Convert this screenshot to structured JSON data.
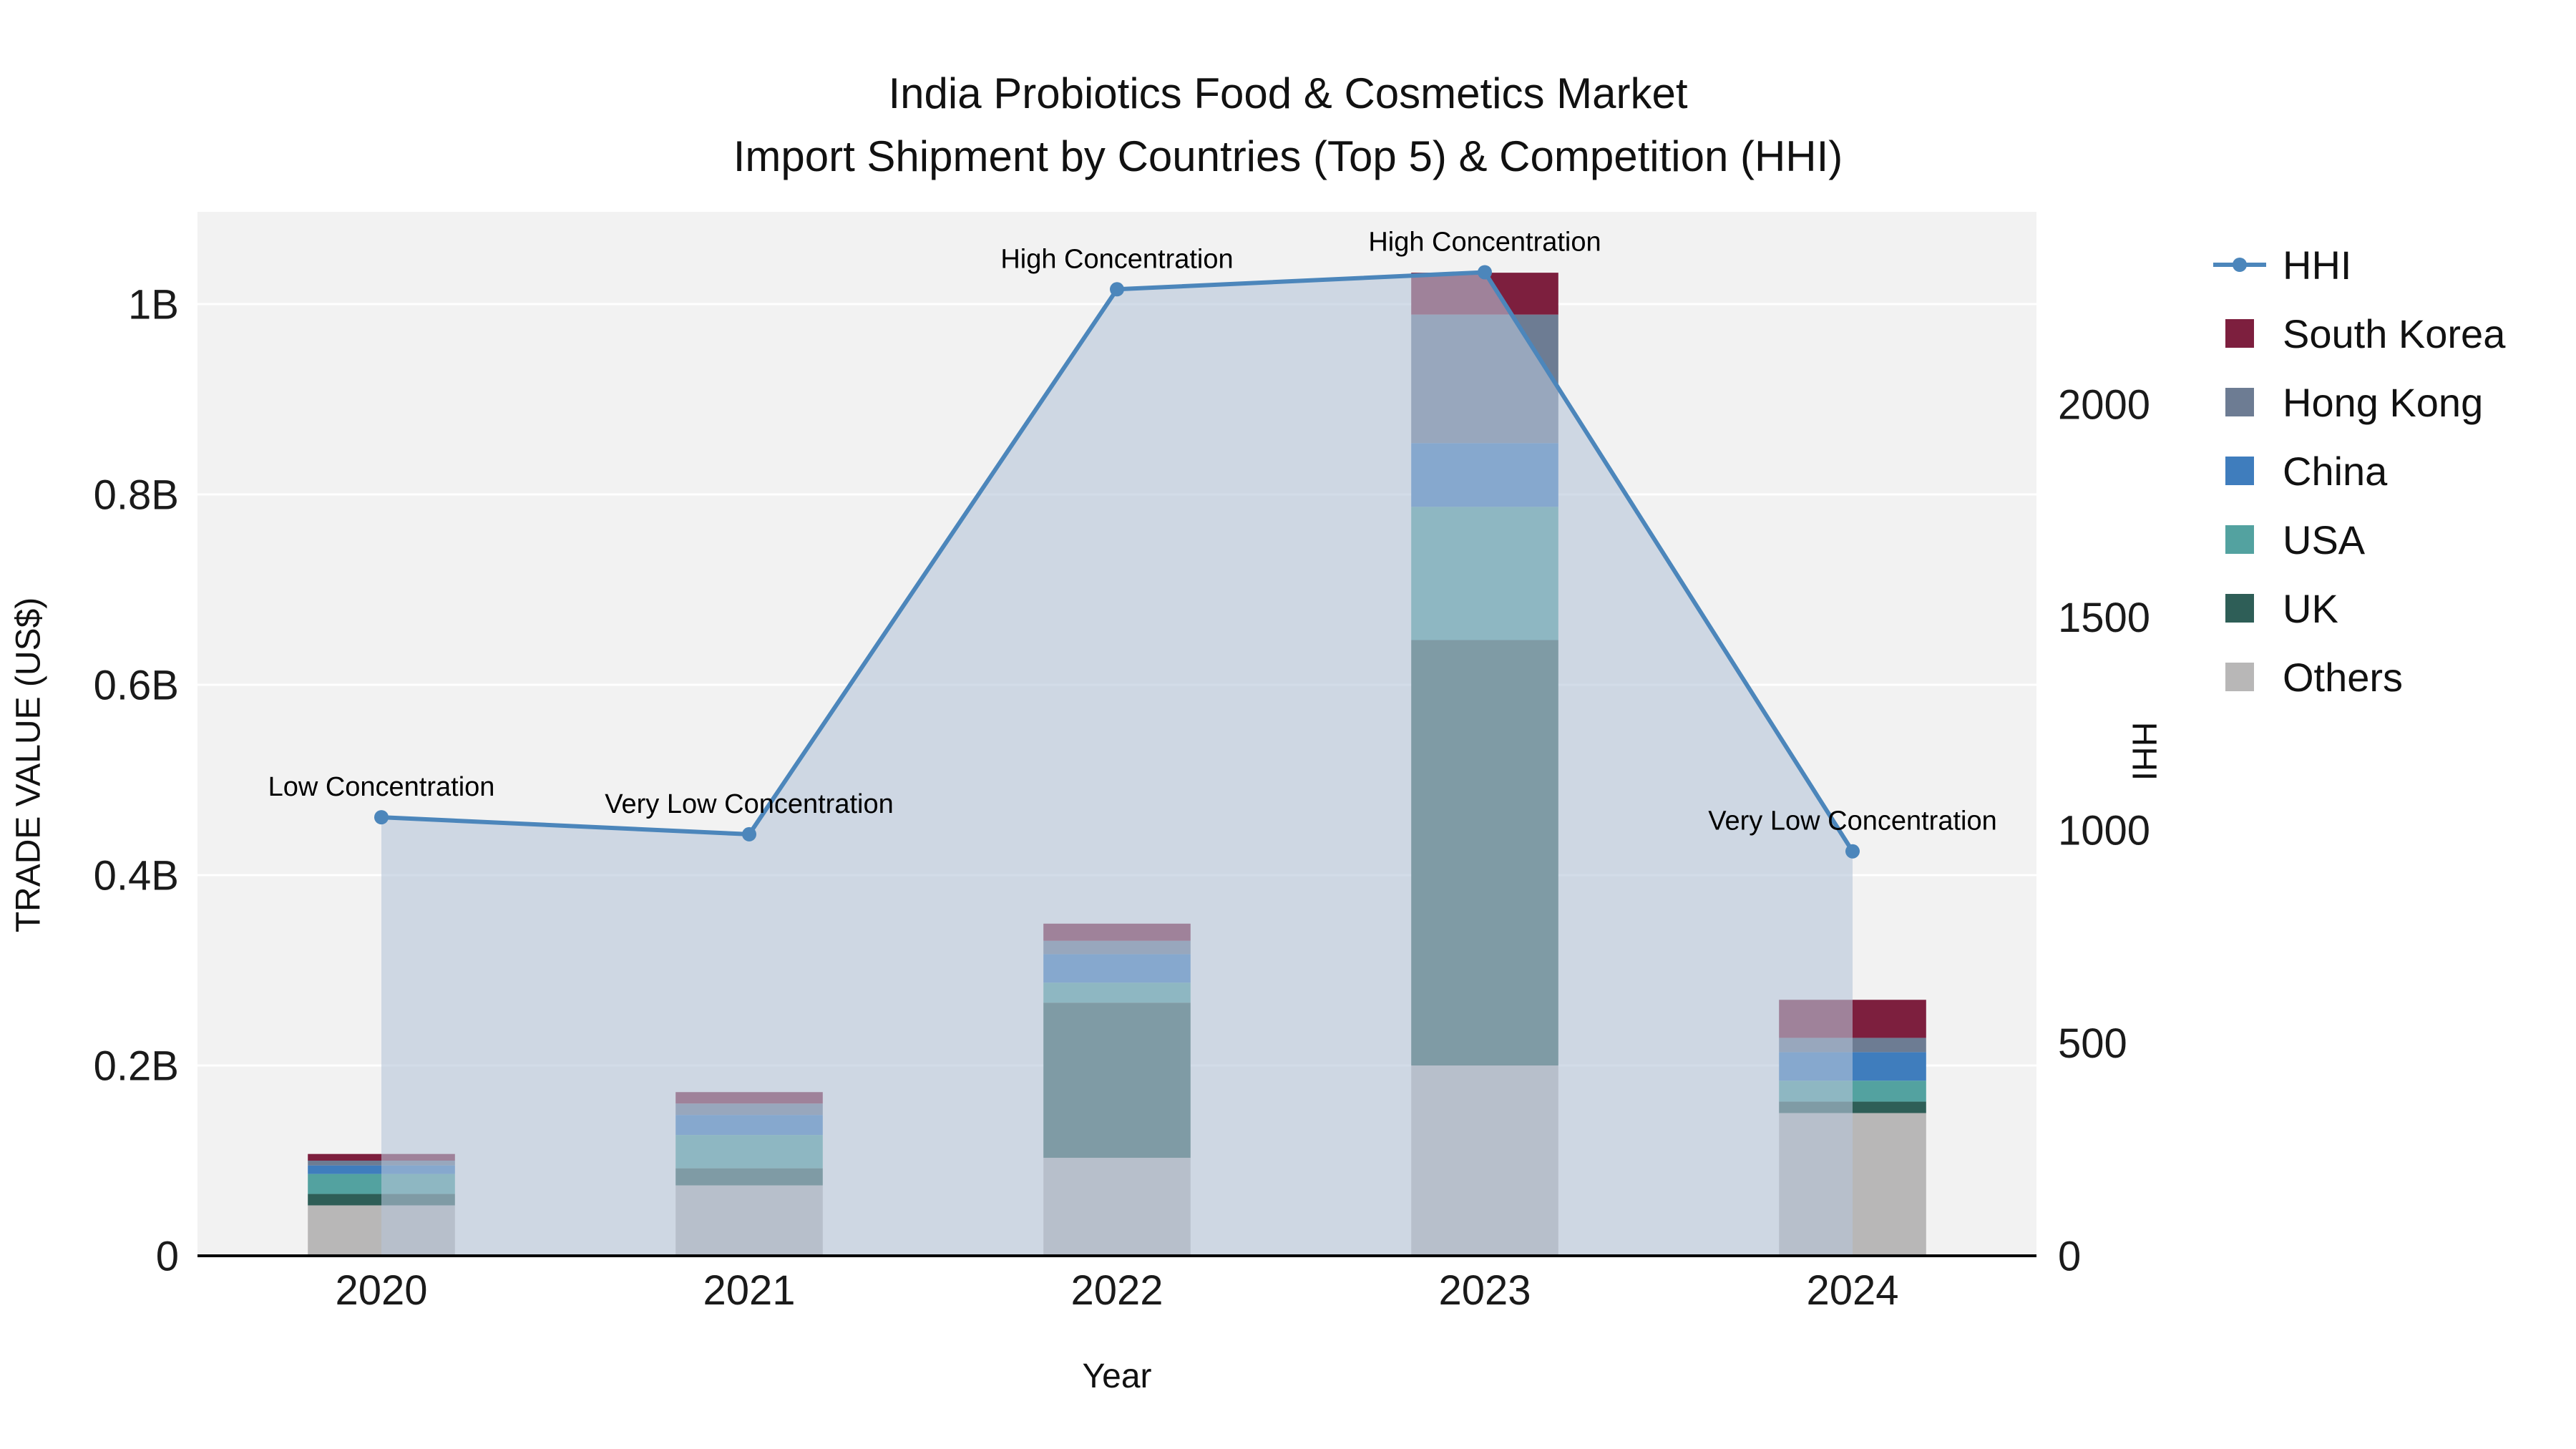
{
  "title": {
    "line1": "India Probiotics Food & Cosmetics Market",
    "line2": "Import Shipment by Countries (Top 5) & Competition (HHI)"
  },
  "axes": {
    "x_title": "Year",
    "y_left_title": "TRADE VALUE (US$)",
    "y_right_title": "HHI"
  },
  "chart_data": {
    "type": "bar",
    "subtype": "stacked-bars-with-line-area-overlay",
    "title": "India Probiotics Food & Cosmetics Market — Import Shipment by Countries (Top 5) & Competition (HHI)",
    "categories": [
      "2020",
      "2021",
      "2022",
      "2023",
      "2024"
    ],
    "x_label": "Year",
    "y_left": {
      "label": "TRADE VALUE (US$)",
      "unit": "US$ billions",
      "ticks": [
        "0",
        "0.2B",
        "0.4B",
        "0.6B",
        "0.8B",
        "1B"
      ],
      "tick_values": [
        0,
        0.2,
        0.4,
        0.6,
        0.8,
        1
      ],
      "range": [
        0,
        1.097
      ]
    },
    "y_right": {
      "label": "HHI",
      "ticks": [
        "0",
        "500",
        "1000",
        "1500",
        "2000"
      ],
      "tick_values": [
        0,
        500,
        1000,
        1500,
        2000
      ],
      "range": [
        0,
        2452
      ]
    },
    "bar_series": [
      {
        "name": "Others",
        "color": "#b8b7b7",
        "values": [
          0.053,
          0.074,
          0.103,
          0.2,
          0.15
        ]
      },
      {
        "name": "UK",
        "color": "#2e5e57",
        "values": [
          0.012,
          0.018,
          0.163,
          0.447,
          0.012
        ]
      },
      {
        "name": "USA",
        "color": "#53a2a0",
        "values": [
          0.021,
          0.035,
          0.021,
          0.14,
          0.022
        ]
      },
      {
        "name": "China",
        "color": "#3f7dbd",
        "values": [
          0.009,
          0.021,
          0.03,
          0.067,
          0.03
        ]
      },
      {
        "name": "Hong Kong",
        "color": "#6d7c93",
        "values": [
          0.005,
          0.012,
          0.014,
          0.135,
          0.015
        ]
      },
      {
        "name": "South Korea",
        "color": "#7d1f3e",
        "values": [
          0.007,
          0.012,
          0.018,
          0.044,
          0.04
        ]
      }
    ],
    "hhi": {
      "name": "HHI",
      "color": "#4c86bb",
      "fill_color": "#b6c4d8",
      "fill_opacity": 0.6,
      "values": [
        1030,
        990,
        2270,
        2310,
        950
      ]
    },
    "annotations": [
      {
        "text": "Low Concentration",
        "x": "2020"
      },
      {
        "text": "Very Low Concentration",
        "x": "2021"
      },
      {
        "text": "High Concentration",
        "x": "2022"
      },
      {
        "text": "High Concentration",
        "x": "2023"
      },
      {
        "text": "Very Low Concentration",
        "x": "2024"
      }
    ],
    "legend": [
      "HHI",
      "South Korea",
      "Hong Kong",
      "China",
      "USA",
      "UK",
      "Others"
    ],
    "legend_position": "right",
    "grid": "horizontal",
    "colors": {
      "plot_background": "#f2f2f2",
      "grid": "#ffffff",
      "axis_line": "#000000",
      "text": "#1a1a1a"
    }
  }
}
